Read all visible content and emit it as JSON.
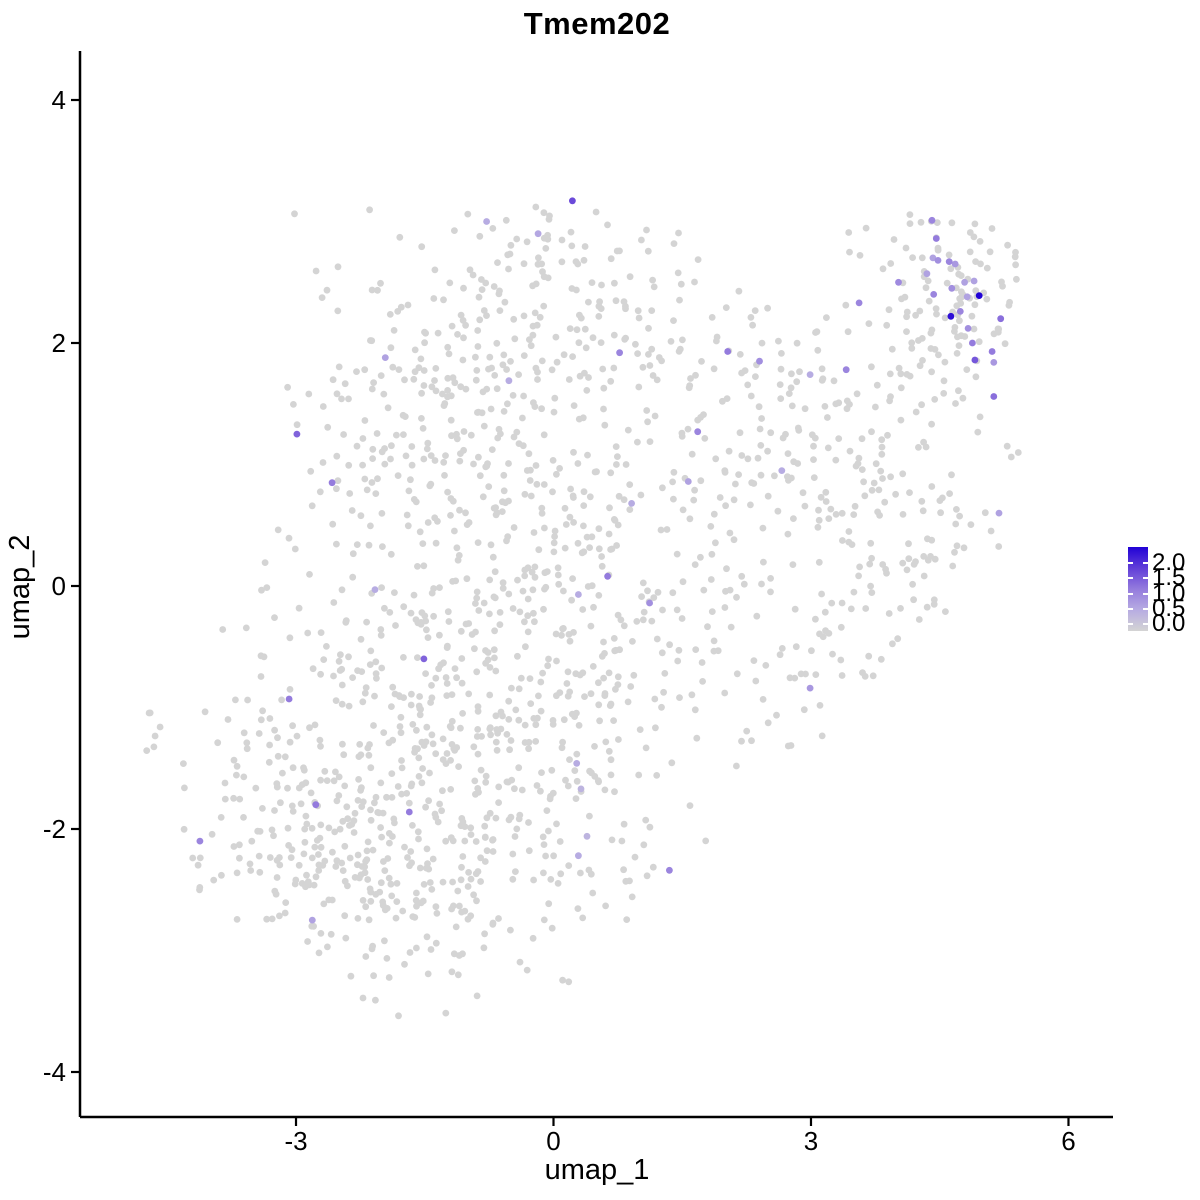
{
  "figure": {
    "title": "Tmem202"
  },
  "chart_data": {
    "type": "scatter",
    "title": "Tmem202",
    "xlabel": "umap_1",
    "ylabel": "umap_2",
    "xlim": [
      -5.5,
      6.5
    ],
    "ylim": [
      -4.4,
      4.4
    ],
    "x_ticks": [
      -3,
      0,
      3,
      6
    ],
    "y_ticks": [
      -4,
      -2,
      0,
      2,
      4
    ],
    "grid": false,
    "point_radius_px": 3.4,
    "legend": {
      "position": "right",
      "labels": [
        "2.0",
        "1.5",
        "1.0",
        "0.5",
        "0.0"
      ],
      "values": [
        2.0,
        1.5,
        1.0,
        0.5,
        0.0
      ],
      "min": 0.0,
      "max": 2.0
    },
    "color_scale": {
      "low_color": "#d4d4d4",
      "high_color": "#2102d6",
      "stops": [
        {
          "t": 0.0,
          "hex": "#d4d4d4"
        },
        {
          "t": 0.25,
          "hex": "#b7ace2"
        },
        {
          "t": 0.5,
          "hex": "#947bdd"
        },
        {
          "t": 0.75,
          "hex": "#613ed8"
        },
        {
          "t": 1.0,
          "hex": "#2102d6"
        }
      ]
    },
    "points": {
      "expressing": [
        {
          "x": 0.22,
          "y": 3.17,
          "v": 1.4
        },
        {
          "x": -0.78,
          "y": 3.0,
          "v": 0.5
        },
        {
          "x": -0.18,
          "y": 2.9,
          "v": 0.55
        },
        {
          "x": 4.41,
          "y": 3.01,
          "v": 0.9
        },
        {
          "x": 4.46,
          "y": 2.86,
          "v": 1.0
        },
        {
          "x": 4.42,
          "y": 2.7,
          "v": 0.6
        },
        {
          "x": 4.48,
          "y": 2.68,
          "v": 0.8
        },
        {
          "x": 4.61,
          "y": 2.67,
          "v": 0.9
        },
        {
          "x": 4.68,
          "y": 2.65,
          "v": 0.7
        },
        {
          "x": 4.35,
          "y": 2.57,
          "v": 0.6
        },
        {
          "x": 4.9,
          "y": 2.51,
          "v": 0.6
        },
        {
          "x": 4.64,
          "y": 2.45,
          "v": 0.8
        },
        {
          "x": 4.43,
          "y": 2.4,
          "v": 0.9
        },
        {
          "x": 4.82,
          "y": 2.38,
          "v": 0.6
        },
        {
          "x": 4.96,
          "y": 2.39,
          "v": 2.0
        },
        {
          "x": 4.02,
          "y": 2.5,
          "v": 0.85
        },
        {
          "x": 4.79,
          "y": 2.5,
          "v": 0.6
        },
        {
          "x": 4.63,
          "y": 2.22,
          "v": 1.9
        },
        {
          "x": 4.74,
          "y": 2.26,
          "v": 0.9
        },
        {
          "x": 5.21,
          "y": 2.2,
          "v": 1.1
        },
        {
          "x": 4.83,
          "y": 2.12,
          "v": 0.8
        },
        {
          "x": 4.88,
          "y": 2.0,
          "v": 1.0
        },
        {
          "x": 4.91,
          "y": 1.86,
          "v": 1.3
        },
        {
          "x": 5.11,
          "y": 1.93,
          "v": 1.0
        },
        {
          "x": 5.13,
          "y": 1.84,
          "v": 0.7
        },
        {
          "x": 5.13,
          "y": 1.56,
          "v": 1.1
        },
        {
          "x": 3.56,
          "y": 2.33,
          "v": 0.9
        },
        {
          "x": 2.03,
          "y": 1.93,
          "v": 1.0
        },
        {
          "x": 2.4,
          "y": 1.85,
          "v": 0.8
        },
        {
          "x": 3.41,
          "y": 1.78,
          "v": 0.9
        },
        {
          "x": 2.99,
          "y": 1.74,
          "v": 0.5
        },
        {
          "x": 1.68,
          "y": 1.27,
          "v": 0.9
        },
        {
          "x": 0.77,
          "y": 1.92,
          "v": 0.9
        },
        {
          "x": -1.96,
          "y": 1.88,
          "v": 0.6
        },
        {
          "x": -0.52,
          "y": 1.69,
          "v": 0.5
        },
        {
          "x": -2.99,
          "y": 1.25,
          "v": 1.2
        },
        {
          "x": -2.58,
          "y": 0.85,
          "v": 1.0
        },
        {
          "x": 2.66,
          "y": 0.95,
          "v": 0.5
        },
        {
          "x": 1.57,
          "y": 0.86,
          "v": 0.6
        },
        {
          "x": 0.91,
          "y": 0.68,
          "v": 0.5
        },
        {
          "x": 5.19,
          "y": 0.6,
          "v": 0.6
        },
        {
          "x": 0.63,
          "y": 0.08,
          "v": 1.0
        },
        {
          "x": 0.29,
          "y": -0.07,
          "v": 0.5
        },
        {
          "x": 1.12,
          "y": -0.14,
          "v": 0.8
        },
        {
          "x": -2.08,
          "y": -0.03,
          "v": 0.5
        },
        {
          "x": -1.51,
          "y": -0.6,
          "v": 1.2
        },
        {
          "x": -3.08,
          "y": -0.93,
          "v": 1.0
        },
        {
          "x": 2.99,
          "y": -0.84,
          "v": 0.7
        },
        {
          "x": 0.27,
          "y": -1.46,
          "v": 0.5
        },
        {
          "x": 0.32,
          "y": -1.67,
          "v": 0.4
        },
        {
          "x": -2.77,
          "y": -1.8,
          "v": 1.0
        },
        {
          "x": -1.68,
          "y": -1.86,
          "v": 1.0
        },
        {
          "x": -4.12,
          "y": -2.1,
          "v": 0.9
        },
        {
          "x": 0.39,
          "y": -2.06,
          "v": 0.4
        },
        {
          "x": 0.29,
          "y": -2.22,
          "v": 0.5
        },
        {
          "x": 1.35,
          "y": -2.34,
          "v": 0.9
        },
        {
          "x": -2.81,
          "y": -2.75,
          "v": 0.6
        }
      ],
      "background": {
        "value": 0.0,
        "seed": 7,
        "clusters": [
          {
            "cx": -2.1,
            "cy": -2.05,
            "sx": 1.05,
            "sy": 0.72,
            "n": 420
          },
          {
            "cx": -1.3,
            "cy": -0.6,
            "sx": 1.15,
            "sy": 0.65,
            "n": 230
          },
          {
            "cx": -1.1,
            "cy": 1.3,
            "sx": 1.1,
            "sy": 0.75,
            "n": 270
          },
          {
            "cx": 0.1,
            "cy": 2.3,
            "sx": 1.05,
            "sy": 0.5,
            "n": 150
          },
          {
            "cx": 0.6,
            "cy": -0.1,
            "sx": 0.9,
            "sy": 0.9,
            "n": 170
          },
          {
            "cx": 0.35,
            "cy": -1.9,
            "sx": 0.7,
            "sy": 0.6,
            "n": 60
          },
          {
            "cx": 2.2,
            "cy": 1.2,
            "sx": 0.85,
            "sy": 0.75,
            "n": 130
          },
          {
            "cx": 3.6,
            "cy": 1.0,
            "sx": 0.7,
            "sy": 0.9,
            "n": 110
          },
          {
            "cx": 4.62,
            "cy": 2.3,
            "sx": 0.45,
            "sy": 0.4,
            "n": 115
          },
          {
            "cx": 4.4,
            "cy": 0.2,
            "sx": 0.55,
            "sy": 0.55,
            "n": 40
          },
          {
            "cx": 2.8,
            "cy": -0.5,
            "sx": 0.6,
            "sy": 0.5,
            "n": 30
          },
          {
            "cx": -4.65,
            "cy": -1.2,
            "sx": 0.08,
            "sy": 0.15,
            "n": 6,
            "noclip": true
          }
        ],
        "clip": {
          "x_min": -4.32,
          "x_max": 5.55,
          "y_min": -3.55,
          "y_max": 3.12,
          "lower_right_diag": {
            "x_from": 0.4,
            "slope": 0.733,
            "intercept": -3.57
          },
          "upper_left_block": {
            "x_below": -3.1,
            "y_above": 0.55
          },
          "lower_left_diag": {
            "slope": -0.45,
            "intercept": -4.42
          },
          "top_gap": {
            "x_from": 1.7,
            "x_to": 3.4,
            "y_above": 2.45
          }
        }
      }
    }
  }
}
